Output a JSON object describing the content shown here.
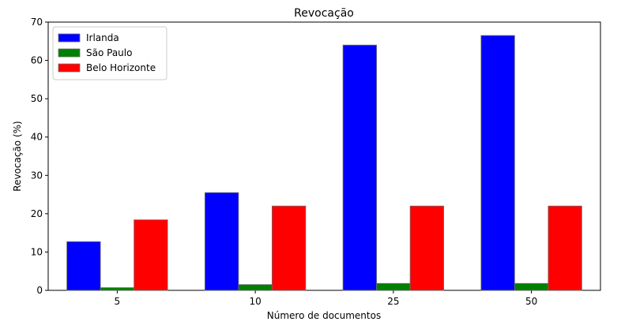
{
  "chart_data": {
    "type": "bar",
    "title": "Revocação",
    "xlabel": "Número de documentos",
    "ylabel": "Revocação (%)",
    "categories": [
      "5",
      "10",
      "25",
      "50"
    ],
    "series": [
      {
        "name": "Irlanda",
        "color": "#0000ff",
        "values": [
          12.7,
          25.5,
          64.0,
          66.5
        ]
      },
      {
        "name": "São Paulo",
        "color": "#008000",
        "values": [
          0.7,
          1.5,
          1.8,
          1.8
        ]
      },
      {
        "name": "Belo Horizonte",
        "color": "#ff0000",
        "values": [
          18.4,
          22.0,
          22.0,
          22.0
        ]
      }
    ],
    "ylim": [
      0,
      70
    ],
    "yticks": [
      0,
      10,
      20,
      30,
      40,
      50,
      60,
      70
    ],
    "grid": false,
    "legend_position": "top-left"
  }
}
